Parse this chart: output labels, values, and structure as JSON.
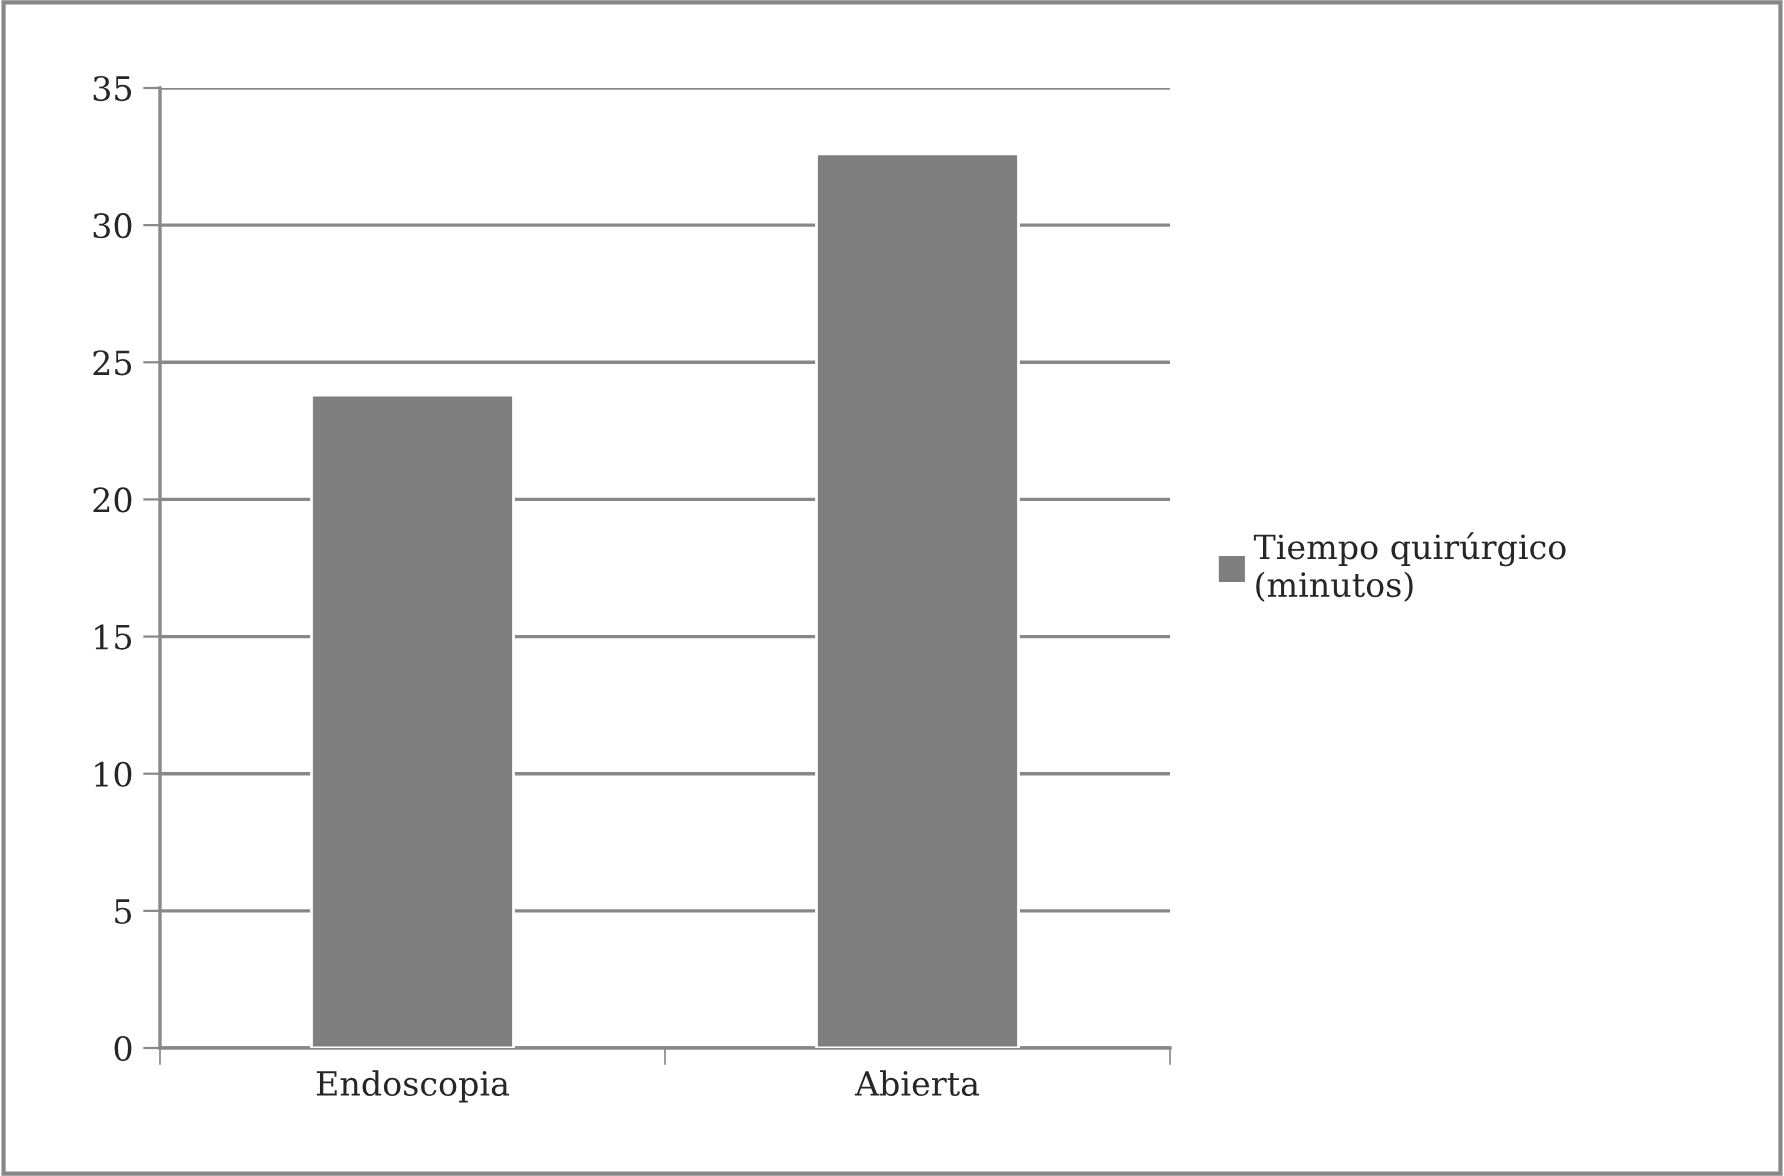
{
  "chart_data": {
    "type": "bar",
    "categories": [
      "Endoscopia",
      "Abierta"
    ],
    "series": [
      {
        "name": "Tiempo quirúrgico\n(minutos)",
        "color": "#7f7f7f",
        "values": [
          23.8,
          32.6
        ]
      }
    ],
    "ylim": [
      0,
      35
    ],
    "yticks": [
      0,
      5,
      10,
      15,
      20,
      25,
      30,
      35
    ],
    "grid": "y",
    "legend": "right"
  }
}
